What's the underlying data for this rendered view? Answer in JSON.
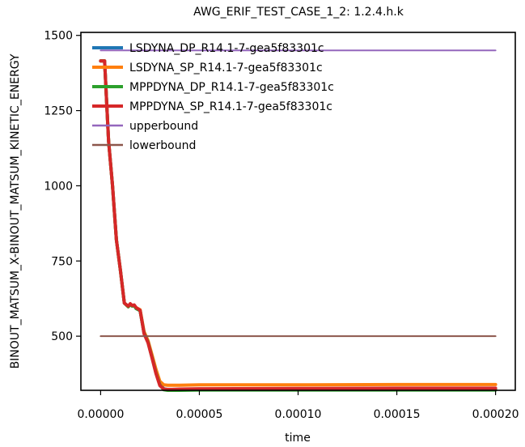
{
  "chart_data": {
    "type": "line",
    "title": "AWG_ERIF_TEST_CASE_1_2: 1.2.4.h.k",
    "xlabel": "time",
    "ylabel": "BINOUT_MATSUM_X-BINOUT_MATSUM_KINETIC_ENERGY",
    "xlim": [
      -1e-05,
      0.00021
    ],
    "ylim": [
      320,
      1510
    ],
    "xticks": [
      0.0,
      5e-05,
      0.0001,
      0.00015,
      0.0002
    ],
    "xtick_labels": [
      "0.00000",
      "0.00005",
      "0.00010",
      "0.00015",
      "0.00020"
    ],
    "yticks": [
      500,
      750,
      1000,
      1250,
      1500
    ],
    "ytick_labels": [
      "500",
      "750",
      "1000",
      "1250",
      "1500"
    ],
    "grid": false,
    "legend_position": "top-left",
    "series": [
      {
        "name": "LSDYNA_DP_R14.1-7-gea5f83301c",
        "color": "#1f77b4",
        "x": [
          0.0,
          2e-06,
          4e-06,
          6e-06,
          8e-06,
          1e-05,
          1.2e-05,
          1.4e-05,
          1.5e-05,
          1.6e-05,
          1.7e-05,
          1.8e-05,
          2e-05,
          2.2e-05,
          2.4e-05,
          2.6e-05,
          2.8e-05,
          3e-05,
          3.2e-05,
          3.4e-05,
          3.5e-05,
          3.6e-05,
          4e-05,
          5e-05,
          0.0001,
          0.00015,
          0.0002
        ],
        "y": [
          1415,
          1415,
          1150,
          1000,
          820,
          720,
          610,
          598,
          605,
          600,
          602,
          592,
          585,
          510,
          480,
          430,
          380,
          340,
          325,
          322,
          322,
          322,
          322,
          323,
          324,
          325,
          325
        ]
      },
      {
        "name": "LSDYNA_SP_R14.1-7-gea5f83301c",
        "color": "#ff7f0e",
        "x": [
          0.0,
          2e-06,
          4e-06,
          6e-06,
          8e-06,
          1e-05,
          1.2e-05,
          1.4e-05,
          1.5e-05,
          1.6e-05,
          1.7e-05,
          1.8e-05,
          2e-05,
          2.2e-05,
          2.4e-05,
          2.6e-05,
          2.8e-05,
          3e-05,
          3.2e-05,
          3.4e-05,
          3.5e-05,
          3.6e-05,
          4e-05,
          5e-05,
          0.0001,
          0.00015,
          0.0002
        ],
        "y": [
          1415,
          1415,
          1150,
          1000,
          820,
          720,
          610,
          598,
          605,
          600,
          602,
          595,
          588,
          515,
          485,
          438,
          390,
          350,
          338,
          337,
          337,
          337,
          337,
          338,
          338,
          339,
          339
        ]
      },
      {
        "name": "MPPDYNA_DP_R14.1-7-gea5f83301c",
        "color": "#2ca02c",
        "x": [
          0.0,
          2e-06,
          4e-06,
          6e-06,
          8e-06,
          1e-05,
          1.2e-05,
          1.4e-05,
          1.5e-05,
          1.6e-05,
          1.7e-05,
          1.8e-05,
          2e-05,
          2.2e-05,
          2.4e-05,
          2.6e-05,
          2.8e-05,
          3e-05,
          3.2e-05,
          3.4e-05,
          3.5e-05,
          3.6e-05,
          4e-05,
          5e-05,
          0.0001,
          0.00015,
          0.0002
        ],
        "y": [
          1415,
          1415,
          1150,
          1000,
          820,
          720,
          610,
          598,
          605,
          600,
          602,
          592,
          585,
          510,
          480,
          430,
          378,
          338,
          322,
          320,
          320,
          320,
          320,
          321,
          321,
          321,
          321
        ]
      },
      {
        "name": "MPPDYNA_SP_R14.1-7-gea5f83301c",
        "color": "#d62728",
        "x": [
          0.0,
          2e-06,
          4e-06,
          6e-06,
          8e-06,
          1e-05,
          1.2e-05,
          1.4e-05,
          1.5e-05,
          1.6e-05,
          1.7e-05,
          1.8e-05,
          2e-05,
          2.2e-05,
          2.4e-05,
          2.6e-05,
          2.8e-05,
          3e-05,
          3.2e-05,
          3.4e-05,
          3.5e-05,
          3.6e-05,
          4e-05,
          5e-05,
          0.0001,
          0.00015,
          0.0002
        ],
        "y": [
          1415,
          1415,
          1150,
          1000,
          820,
          720,
          610,
          600,
          608,
          602,
          604,
          595,
          586,
          508,
          478,
          428,
          376,
          336,
          324,
          323,
          323,
          323,
          324,
          325,
          326,
          327,
          327
        ]
      },
      {
        "name": "upperbound",
        "color": "#9467bd",
        "x": [
          0.0,
          0.0002
        ],
        "y": [
          1450,
          1450
        ]
      },
      {
        "name": "lowerbound",
        "color": "#8c564b",
        "x": [
          0.0,
          0.0002
        ],
        "y": [
          500,
          500
        ]
      }
    ]
  }
}
